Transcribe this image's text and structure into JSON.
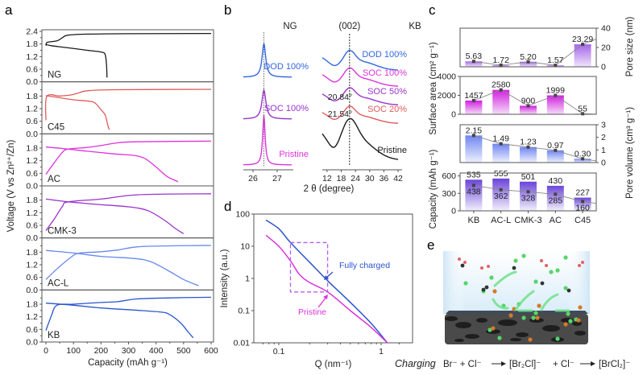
{
  "panels": {
    "a": "a",
    "b": "b",
    "c": "c",
    "d": "d",
    "e": "e"
  },
  "chart_data": [
    {
      "id": "a",
      "type": "line",
      "xlabel": "Capacity (mAh g⁻¹)",
      "ylabel": "Voltage (V vs Zn²⁺/Zn)",
      "xlim": [
        0,
        600
      ],
      "xticks": [
        "0",
        "100",
        "200",
        "300",
        "400",
        "500",
        "600"
      ],
      "ylim": [
        0,
        2.4
      ],
      "yticks_top": [
        "0.0",
        "0.6",
        "1.2",
        "1.8",
        "2.4"
      ],
      "yticks": [
        "0.0",
        "0.6",
        "1.2",
        "1.8"
      ],
      "subplots": [
        {
          "name": "NG",
          "color": "#1a1a1a",
          "discharge": [
            [
              0,
              1.78
            ],
            [
              20,
              1.72
            ],
            [
              80,
              1.62
            ],
            [
              150,
              1.5
            ],
            [
              200,
              1.42
            ],
            [
              215,
              1.3
            ],
            [
              220,
              0.8
            ],
            [
              222,
              0.2
            ]
          ],
          "charge": [
            [
              0,
              1.72
            ],
            [
              5,
              1.88
            ],
            [
              40,
              1.95
            ],
            [
              60,
              2.1
            ],
            [
              80,
              2.22
            ],
            [
              150,
              2.27
            ],
            [
              300,
              2.29
            ],
            [
              600,
              2.3
            ]
          ]
        },
        {
          "name": "C45",
          "color": "#e05a5a",
          "discharge": [
            [
              0,
              1.82
            ],
            [
              30,
              1.76
            ],
            [
              100,
              1.62
            ],
            [
              160,
              1.55
            ],
            [
              180,
              1.45
            ],
            [
              200,
              1.15
            ],
            [
              215,
              0.9
            ],
            [
              225,
              0.4
            ],
            [
              230,
              0.2
            ]
          ],
          "charge": [
            [
              0,
              0.65
            ],
            [
              3,
              1.78
            ],
            [
              50,
              1.8
            ],
            [
              90,
              1.85
            ],
            [
              120,
              1.95
            ],
            [
              150,
              2.05
            ],
            [
              250,
              2.1
            ],
            [
              600,
              2.12
            ]
          ]
        },
        {
          "name": "AC",
          "color": "#dd33dd",
          "discharge": [
            [
              0,
              1.85
            ],
            [
              60,
              1.78
            ],
            [
              150,
              1.65
            ],
            [
              250,
              1.52
            ],
            [
              320,
              1.45
            ],
            [
              360,
              1.3
            ],
            [
              400,
              0.9
            ],
            [
              440,
              0.45
            ],
            [
              480,
              0.2
            ]
          ],
          "charge": [
            [
              0,
              0.55
            ],
            [
              30,
              1.1
            ],
            [
              60,
              1.6
            ],
            [
              80,
              1.75
            ],
            [
              150,
              1.83
            ],
            [
              200,
              1.92
            ],
            [
              260,
              2.05
            ],
            [
              330,
              2.1
            ],
            [
              600,
              2.13
            ]
          ]
        },
        {
          "name": "CMK-3",
          "color": "#9933cc",
          "discharge": [
            [
              0,
              1.85
            ],
            [
              80,
              1.72
            ],
            [
              180,
              1.6
            ],
            [
              300,
              1.48
            ],
            [
              370,
              1.3
            ],
            [
              430,
              0.85
            ],
            [
              470,
              0.45
            ],
            [
              500,
              0.2
            ]
          ],
          "charge": [
            [
              0,
              0.35
            ],
            [
              30,
              0.9
            ],
            [
              60,
              1.5
            ],
            [
              80,
              1.72
            ],
            [
              200,
              1.85
            ],
            [
              300,
              2.02
            ],
            [
              400,
              2.08
            ],
            [
              600,
              2.1
            ]
          ]
        },
        {
          "name": "AC-L",
          "color": "#6688ee",
          "discharge": [
            [
              0,
              1.88
            ],
            [
              100,
              1.76
            ],
            [
              200,
              1.6
            ],
            [
              320,
              1.5
            ],
            [
              380,
              1.35
            ],
            [
              440,
              0.95
            ],
            [
              500,
              0.5
            ],
            [
              555,
              0.2
            ]
          ],
          "charge": [
            [
              0,
              0.5
            ],
            [
              40,
              1.0
            ],
            [
              90,
              1.55
            ],
            [
              120,
              1.75
            ],
            [
              200,
              1.82
            ],
            [
              260,
              1.9
            ],
            [
              330,
              2.05
            ],
            [
              450,
              2.1
            ],
            [
              600,
              2.12
            ]
          ]
        },
        {
          "name": "KB",
          "color": "#2a55cc",
          "discharge": [
            [
              0,
              1.85
            ],
            [
              100,
              1.75
            ],
            [
              200,
              1.62
            ],
            [
              320,
              1.52
            ],
            [
              420,
              1.42
            ],
            [
              450,
              1.3
            ],
            [
              490,
              0.9
            ],
            [
              515,
              0.5
            ],
            [
              535,
              0.2
            ]
          ],
          "charge": [
            [
              0,
              0.55
            ],
            [
              20,
              1.25
            ],
            [
              40,
              1.75
            ],
            [
              100,
              1.8
            ],
            [
              200,
              1.88
            ],
            [
              260,
              1.92
            ],
            [
              330,
              2.05
            ],
            [
              450,
              2.1
            ],
            [
              600,
              2.13
            ]
          ]
        }
      ]
    },
    {
      "id": "b",
      "type": "line",
      "xlabel": "2 θ (degree)",
      "left": {
        "title": "NG",
        "xlim": [
          25.6,
          27.6
        ],
        "xticks": [
          {
            "v": 26,
            "label": "26"
          },
          {
            "v": 27,
            "label": "27"
          }
        ],
        "peak": 26.45,
        "series": [
          {
            "name": "DOD 100%",
            "color": "#3366dd",
            "width": 0.09,
            "height": 1.0
          },
          {
            "name": "SOC 100%",
            "color": "#9933cc",
            "width": 0.1,
            "height": 0.85
          },
          {
            "name": "Pristine",
            "color": "#dd33dd",
            "width": 0.06,
            "height": 1.8
          }
        ]
      },
      "right": {
        "title": "KB",
        "peak_label": "(002)",
        "xlim": [
          10,
          43
        ],
        "xticks": [
          {
            "v": 12,
            "label": "12"
          },
          {
            "v": 18,
            "label": "18"
          },
          {
            "v": 24,
            "label": "24"
          },
          {
            "v": 30,
            "label": "30"
          },
          {
            "v": 36,
            "label": "36"
          },
          {
            "v": 42,
            "label": "42"
          }
        ],
        "peak": 21.5,
        "annotations": [
          {
            "label": "20.84°"
          },
          {
            "label": "21.54°"
          }
        ],
        "series": [
          {
            "name": "DOD 100%",
            "color": "#3366dd"
          },
          {
            "name": "SOC 100%",
            "color": "#dd33dd"
          },
          {
            "name": "SOC 50%",
            "color": "#9933cc"
          },
          {
            "name": "SOC 20%",
            "color": "#e05a5a"
          },
          {
            "name": "Pristine",
            "color": "#1a1a1a"
          }
        ]
      }
    },
    {
      "id": "c",
      "type": "bar",
      "categories": [
        "KB",
        "AC-L",
        "CMK-3",
        "AC",
        "C45"
      ],
      "subplots": [
        {
          "name": "Pore size",
          "ylabel": "Pore size (nm)",
          "axis": "right",
          "ylim": [
            0,
            40
          ],
          "yticks": [
            "0",
            "20",
            "40"
          ],
          "values": [
            5.63,
            1.72,
            5.2,
            1.57,
            23.29
          ],
          "labels": [
            "5.63",
            "1.72",
            "5.20",
            "1.57",
            "23.29"
          ],
          "color_top": "#a466e8",
          "color_bottom": "#f0e4fb"
        },
        {
          "name": "Surface area",
          "ylabel": "Surface area (cm² g⁻¹)",
          "axis": "left",
          "ylim": [
            0,
            4000
          ],
          "yticks": [
            "0",
            "2000",
            "4000"
          ],
          "values": [
            1457,
            2580,
            900,
            1999,
            55
          ],
          "labels": [
            "1457",
            "2580",
            "900",
            "1999",
            "55"
          ],
          "color_top": "#d21fe0",
          "color_bottom": "#f4ddf7"
        },
        {
          "name": "Pore volume",
          "ylabel": "Pore volume (cm³ g⁻¹)",
          "axis": "right",
          "ylim": [
            0,
            3
          ],
          "yticks": [
            "0",
            "1",
            "2",
            "3"
          ],
          "values": [
            2.15,
            1.49,
            1.23,
            0.97,
            0.3
          ],
          "labels": [
            "2.15",
            "1.49",
            "1.23",
            "0.97",
            "0.30"
          ],
          "color_top": "#6f86f0",
          "color_bottom": "#eef0fd"
        },
        {
          "name": "Capacity",
          "ylabel": "Capacity (mAh g⁻¹)",
          "axis": "left",
          "ylim": [
            0,
            650
          ],
          "yticks": [
            "0",
            "300",
            "600"
          ],
          "values": [
            535,
            555,
            501,
            430,
            227
          ],
          "labels": [
            "535",
            "555",
            "501",
            "430",
            "227"
          ],
          "line_values": [
            438,
            362,
            328,
            285,
            160
          ],
          "line_labels": [
            "438",
            "362",
            "328",
            "285",
            "160"
          ],
          "color_top": "#6a45d8",
          "color_bottom": "#f3f0fc"
        }
      ]
    },
    {
      "id": "d",
      "type": "line",
      "xscale": "log",
      "yscale": "log",
      "xlabel": "Q (nm⁻¹)",
      "ylabel": "Intensity (a.u.)",
      "xlim": [
        0.06,
        1.8
      ],
      "ylim": [
        0.01,
        100
      ],
      "xticks": [
        {
          "v": 0.1,
          "label": "0.1"
        },
        {
          "v": 1,
          "label": "1"
        }
      ],
      "yticks": [
        {
          "v": 100,
          "label": "100"
        },
        {
          "v": 10,
          "label": "10"
        },
        {
          "v": 1,
          "label": "1"
        },
        {
          "v": 0.1,
          "label": "0.1"
        },
        {
          "v": 0.01,
          "label": "0.01"
        }
      ],
      "series": [
        {
          "name": "Fully charged",
          "color": "#2a55cc",
          "points": [
            [
              0.075,
              65
            ],
            [
              0.1,
              35
            ],
            [
              0.13,
              13
            ],
            [
              0.2,
              3.2
            ],
            [
              0.3,
              0.85
            ],
            [
              0.5,
              0.18
            ],
            [
              0.8,
              0.04
            ],
            [
              1.15,
              0.01
            ]
          ]
        },
        {
          "name": "Pristine",
          "color": "#dd33dd",
          "points": [
            [
              0.075,
              22
            ],
            [
              0.1,
              10
            ],
            [
              0.13,
              3.5
            ],
            [
              0.16,
              1.3
            ],
            [
              0.2,
              0.75
            ],
            [
              0.3,
              0.38
            ],
            [
              0.5,
              0.1
            ],
            [
              0.8,
              0.03
            ],
            [
              1.15,
              0.01
            ]
          ]
        }
      ],
      "box": {
        "x": [
          0.13,
          0.3
        ],
        "y": [
          0.38,
          13
        ]
      },
      "annotations": [
        "Fully charged",
        "Pristine"
      ]
    }
  ],
  "panel_e": {
    "prefix": "Charging",
    "reaction": {
      "r1": "Br⁻ + Cl⁻",
      "p1": "[Br₂Cl]⁻",
      "r2": "+ Cl⁻",
      "p2": "[BrCl₂]⁻"
    }
  }
}
